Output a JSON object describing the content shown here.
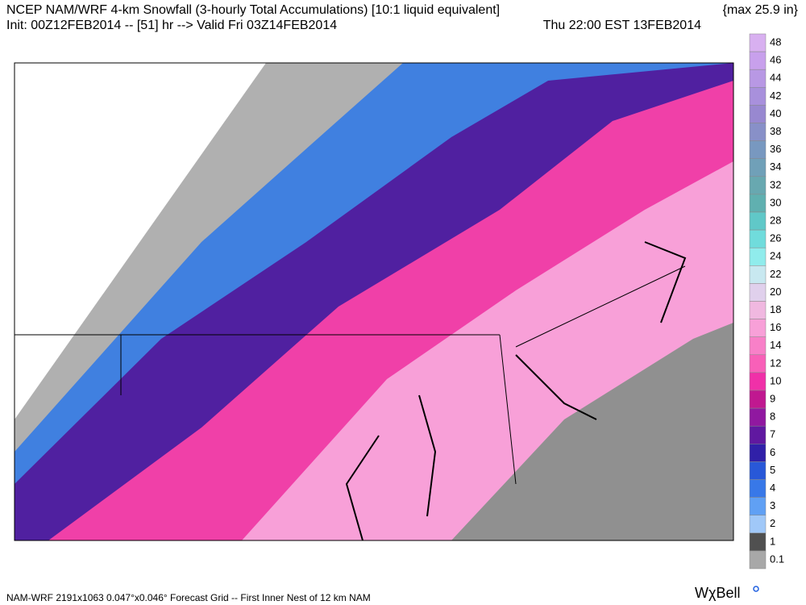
{
  "header": {
    "line1": "NCEP NAM/WRF 4-km Snowfall (3-hourly Total Accumulations) [10:1 liquid equivalent]",
    "max": "{max  25.9 in}",
    "line2": "Init: 00Z12FEB2014 -- [51] hr --> Valid Fri 03Z14FEB2014",
    "local_time": "Thu 22:00 EST 13FEB2014"
  },
  "legend": {
    "levels": [
      48,
      46,
      44,
      42,
      40,
      38,
      36,
      34,
      32,
      30,
      28,
      26,
      24,
      22,
      20,
      18,
      16,
      14,
      12,
      10,
      9,
      8,
      7,
      6,
      5,
      4,
      3,
      2,
      1,
      0.1
    ],
    "colors": [
      "#d8b0f0",
      "#c8a0ec",
      "#b898e4",
      "#a890dc",
      "#9888d0",
      "#8890c8",
      "#7898c0",
      "#70a0b8",
      "#68a8b0",
      "#60b0b0",
      "#60c8c8",
      "#70dcdc",
      "#90ecec",
      "#c8e8f0",
      "#e0d0ec",
      "#f0b8e0",
      "#f8a0d8",
      "#f880c8",
      "#f860b8",
      "#f030a8",
      "#c01890",
      "#9018a0",
      "#6018a0",
      "#3020a8",
      "#2858d8",
      "#3878e8",
      "#60a0f4",
      "#a0c8f8",
      "#505050",
      "#a8a8a8"
    ]
  },
  "footer": {
    "grid": "NAM-WRF 2191x1063 0.047°x0.046° Forecast Grid -- First Inner Nest of 12 km NAM",
    "logo": "WχBell"
  }
}
